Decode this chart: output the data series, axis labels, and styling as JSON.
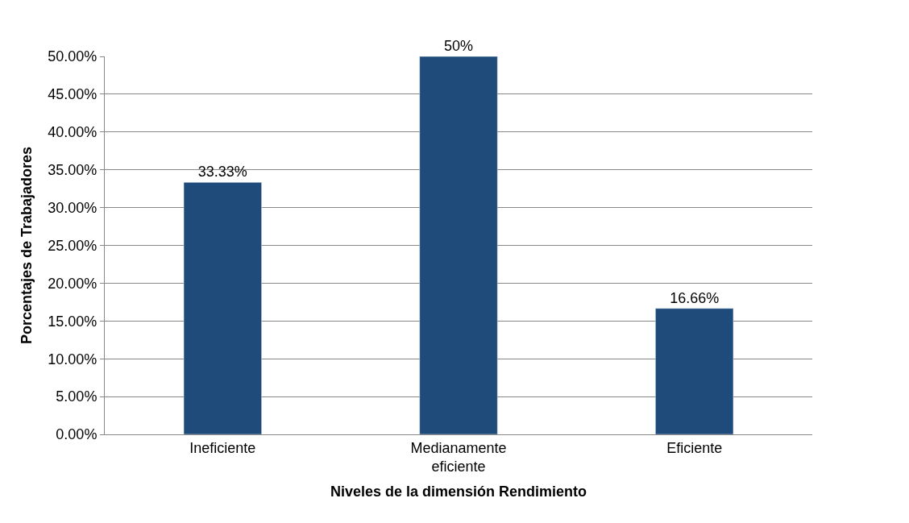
{
  "chart_data": {
    "type": "bar",
    "xlabel": "Niveles de la dimensión Rendimiento",
    "ylabel": "Porcentajes de Trabajadores",
    "categories": [
      "Ineficiente",
      "Medianamente eficiente",
      "Eficiente"
    ],
    "values": [
      33.33,
      50,
      16.66
    ],
    "value_labels": [
      "33.33%",
      "50%",
      "16.66%"
    ],
    "color": "#1f4b7a",
    "ylim": [
      0,
      50
    ],
    "yticks": [
      {
        "value": 0,
        "label": "0.00%"
      },
      {
        "value": 5,
        "label": "5.00%"
      },
      {
        "value": 10,
        "label": "10.00%"
      },
      {
        "value": 15,
        "label": "15.00%"
      },
      {
        "value": 20,
        "label": "20.00%"
      },
      {
        "value": 25,
        "label": "25.00%"
      },
      {
        "value": 30,
        "label": "30.00%"
      },
      {
        "value": 35,
        "label": "35.00%"
      },
      {
        "value": 40,
        "label": "40.00%"
      },
      {
        "value": 45,
        "label": "45.00%"
      },
      {
        "value": 50,
        "label": "50.00%"
      }
    ],
    "grid": "y"
  }
}
